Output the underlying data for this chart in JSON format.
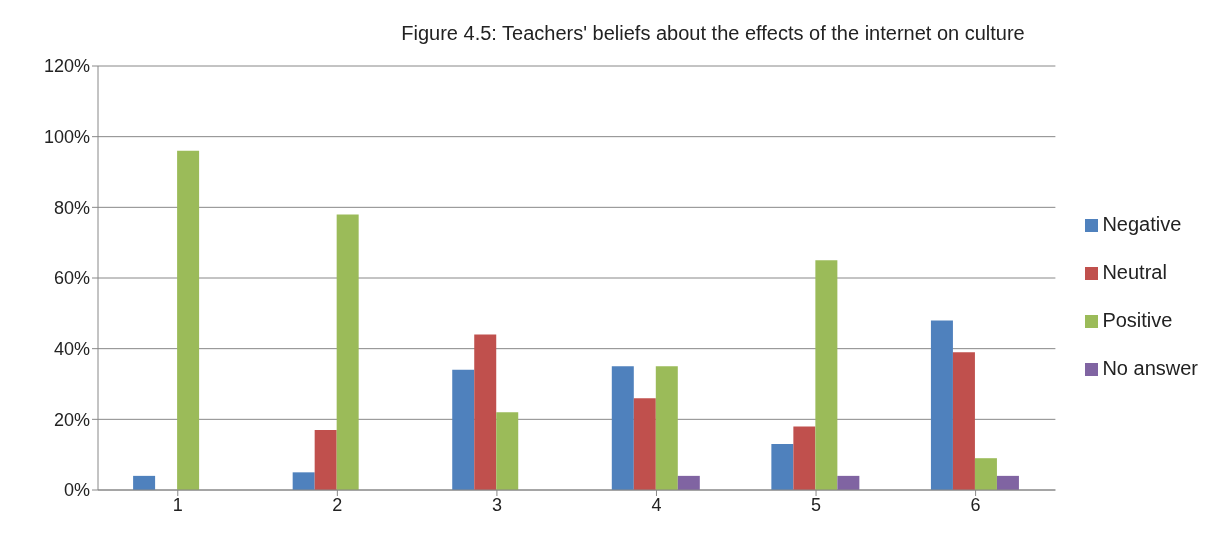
{
  "chart_data": {
    "type": "bar",
    "title": "Figure 4.5: Teachers' beliefs about the effects of the internet on culture",
    "categories": [
      "1",
      "2",
      "3",
      "4",
      "5",
      "6"
    ],
    "series": [
      {
        "name": "Negative",
        "color": "#4f81bd",
        "values": [
          4,
          5,
          34,
          35,
          13,
          48
        ]
      },
      {
        "name": "Neutral",
        "color": "#c0504d",
        "values": [
          0,
          17,
          44,
          26,
          18,
          39
        ]
      },
      {
        "name": "Positive",
        "color": "#9bbb59",
        "values": [
          96,
          78,
          22,
          35,
          65,
          9
        ]
      },
      {
        "name": "No answer",
        "color": "#8064a2",
        "values": [
          0,
          0,
          0,
          4,
          4,
          4
        ]
      }
    ],
    "ylim": [
      0,
      120
    ],
    "yticks": [
      {
        "value": 0,
        "label": "0%"
      },
      {
        "value": 20,
        "label": "20%"
      },
      {
        "value": 40,
        "label": "40%"
      },
      {
        "value": 60,
        "label": "60%"
      },
      {
        "value": 80,
        "label": "80%"
      },
      {
        "value": 100,
        "label": "100%"
      },
      {
        "value": 120,
        "label": "120%"
      }
    ],
    "grid": "y",
    "legend": "right"
  }
}
